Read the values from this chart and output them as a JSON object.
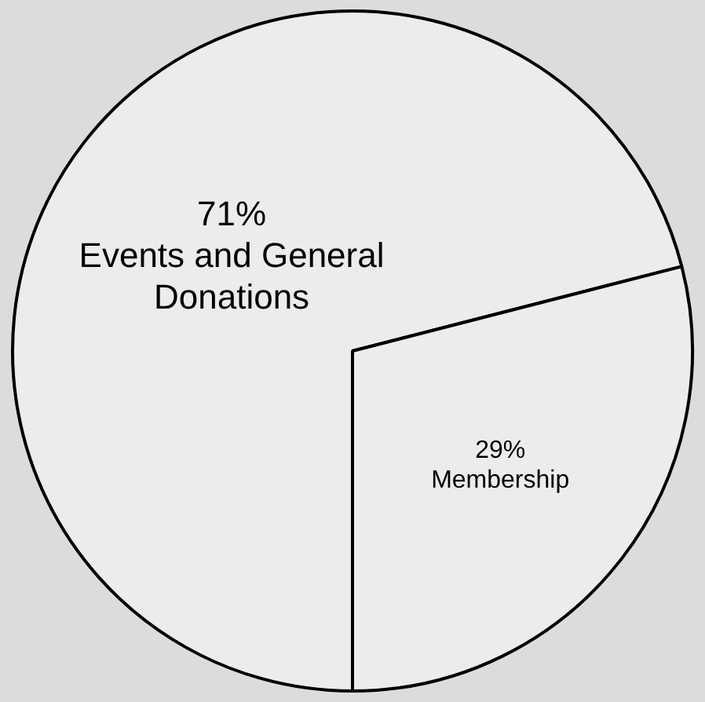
{
  "chart_data": {
    "type": "pie",
    "categories": [
      "Events and General Donations",
      "Membership"
    ],
    "values": [
      71,
      29
    ],
    "value_labels": [
      "71%",
      "29%"
    ],
    "colors": [
      "#ececec",
      "#ececec"
    ],
    "legend": false
  }
}
